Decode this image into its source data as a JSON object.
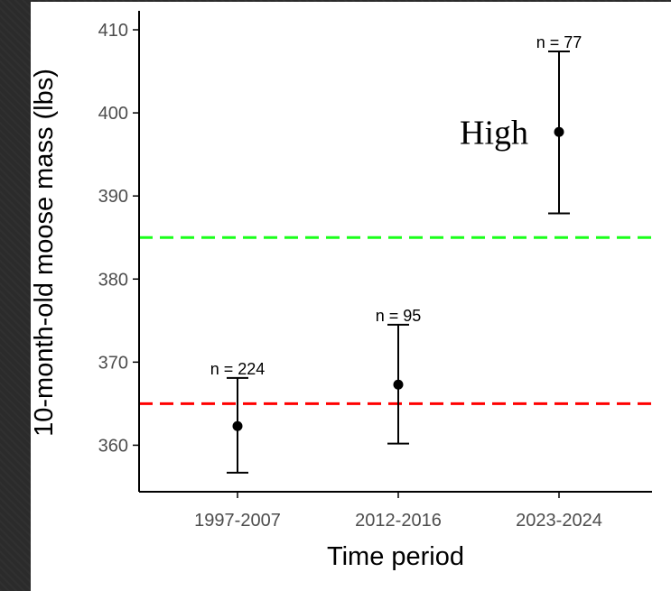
{
  "chart_data": {
    "type": "scatter",
    "title": "",
    "xlabel": "Time period",
    "ylabel": "10-month-old moose mass (lbs)",
    "categories": [
      "1997-2007",
      "2012-2016",
      "2023-2024"
    ],
    "series": [
      {
        "points": [
          {
            "x": "1997-2007",
            "y": 362.3,
            "ymin": 356.7,
            "ymax": 368.1,
            "label": "n = 224"
          },
          {
            "x": "2012-2016",
            "y": 367.3,
            "ymin": 360.2,
            "ymax": 374.5,
            "label": "n = 95"
          },
          {
            "x": "2023-2024",
            "y": 397.7,
            "ymin": 387.9,
            "ymax": 407.4,
            "label": "n = 77"
          }
        ]
      }
    ],
    "reference_lines": [
      {
        "y": 385,
        "color": "#1aff1a",
        "style": "dashed"
      },
      {
        "y": 365,
        "color": "#ff0000",
        "style": "dashed"
      }
    ],
    "annotation": {
      "text": "High",
      "x": "2023-2024",
      "y": 397.7
    },
    "yticks": [
      360,
      370,
      380,
      390,
      400,
      410
    ],
    "ylim": [
      354.4,
      412.5
    ],
    "grid": false
  }
}
